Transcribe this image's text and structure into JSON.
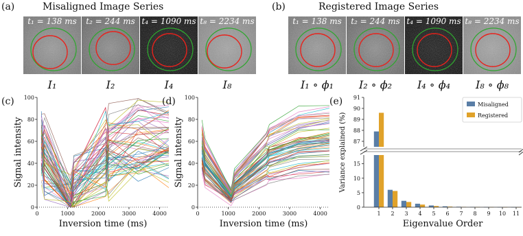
{
  "panel_a": {
    "letter": "(a)",
    "title": "Misaligned Image Series",
    "images": [
      {
        "label": "t₁ = 138 ms",
        "caption": "I₁"
      },
      {
        "label": "t₂ = 244 ms",
        "caption": "I₂"
      },
      {
        "label": "t₄ = 1090 ms",
        "caption": "I₄"
      },
      {
        "label": "t₈ = 2234 ms",
        "caption": "I₈"
      }
    ]
  },
  "panel_b": {
    "letter": "(b)",
    "title": "Registered Image Series",
    "images": [
      {
        "label": "t₁ = 138 ms",
        "caption": "I₁ ∘ ϕ₁"
      },
      {
        "label": "t₂ = 244 ms",
        "caption": "I₂ ∘ ϕ₂"
      },
      {
        "label": "t₄ = 1090 ms",
        "caption": "I₄ ∘ ϕ₄"
      },
      {
        "label": "t₈ = 2234 ms",
        "caption": "I₈ ∘ ϕ₈"
      }
    ]
  },
  "colors": {
    "contour_red": "#e8221c",
    "contour_green": "#2fa62f",
    "misaligned": "#5a7ea6",
    "registered": "#e0a22a"
  },
  "chart_data": [
    {
      "id": "c",
      "letter": "(c)",
      "type": "line",
      "xlabel": "Inversion time (ms)",
      "ylabel": "Signal intensity",
      "x": [
        138,
        244,
        1090,
        1200,
        2234,
        2340,
        3300,
        4300
      ],
      "xlim": [
        0,
        4300
      ],
      "ylim": [
        0,
        100
      ],
      "xticks": [
        0,
        1000,
        2000,
        3000,
        4000
      ],
      "yticks": [
        0,
        20,
        40,
        60,
        80,
        100
      ],
      "series_count": 60
    },
    {
      "id": "d",
      "letter": "(d)",
      "type": "line",
      "xlabel": "Inversion time (ms)",
      "ylabel": "Signal intensity",
      "x": [
        138,
        244,
        1090,
        1200,
        2234,
        2340,
        3300,
        4300
      ],
      "xlim": [
        0,
        4300
      ],
      "ylim": [
        0,
        100
      ],
      "xticks": [
        0,
        1000,
        2000,
        3000,
        4000
      ],
      "yticks": [
        0,
        20,
        40,
        60,
        80,
        100
      ],
      "series_count": 60
    },
    {
      "id": "e",
      "letter": "(e)",
      "type": "bar",
      "xlabel": "Eigenvalue Order",
      "ylabel": "Variance explained (%)",
      "categories": [
        "1",
        "2",
        "3",
        "4",
        "5",
        "6",
        "7",
        "8",
        "9",
        "10",
        "11"
      ],
      "series": [
        {
          "name": "Misaligned",
          "values": [
            87.9,
            6.0,
            2.2,
            1.2,
            0.6,
            0.3,
            0.15,
            0.08,
            0.05,
            0.03,
            0.02
          ]
        },
        {
          "name": "Registered",
          "values": [
            89.6,
            5.6,
            1.8,
            0.9,
            0.4,
            0.2,
            0.1,
            0.06,
            0.04,
            0.02,
            0.01
          ]
        }
      ],
      "ylim_lower": [
        0,
        18
      ],
      "ylim_upper": [
        86.5,
        91
      ],
      "yticks_lower": [
        0,
        5,
        10,
        15
      ],
      "yticks_upper": [
        87,
        88,
        89,
        90,
        91
      ],
      "legend": "top-right"
    }
  ]
}
